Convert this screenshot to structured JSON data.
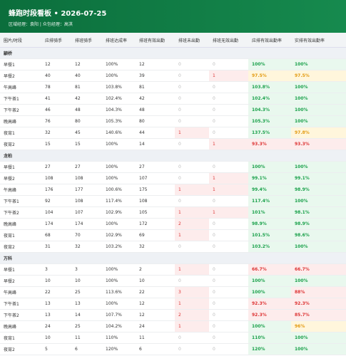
{
  "header": {
    "title": "蜂跑时段看板 • 2026-07-25",
    "subtitle": "区域经理：袁阳 | 众包经理：高淇"
  },
  "table": {
    "columns": [
      "圈片/时段",
      "应排骑手",
      "排班骑手",
      "排班达成率",
      "排班有效出勤",
      "排班未出勤",
      "排班无效出勤",
      "应排有效出勤率",
      "实排有效出勤率"
    ],
    "groups": [
      {
        "name": "颛桥",
        "rows": [
          [
            "早餐1",
            12,
            12,
            "100%",
            12,
            0,
            0,
            "100%",
            "100%"
          ],
          [
            "早餐2",
            40,
            40,
            "100%",
            39,
            0,
            1,
            "97.5%",
            "97.5%"
          ],
          [
            "午高峰",
            78,
            81,
            "103.8%",
            81,
            0,
            0,
            "103.8%",
            "100%"
          ],
          [
            "下午茶1",
            41,
            42,
            "102.4%",
            42,
            0,
            0,
            "102.4%",
            "100%"
          ],
          [
            "下午茶2",
            46,
            48,
            "104.3%",
            48,
            0,
            0,
            "104.3%",
            "100%"
          ],
          [
            "晚高峰",
            76,
            80,
            "105.3%",
            80,
            0,
            0,
            "105.3%",
            "100%"
          ],
          [
            "夜宵1",
            32,
            45,
            "140.6%",
            44,
            1,
            0,
            "137.5%",
            "97.8%"
          ],
          [
            "夜宵2",
            15,
            15,
            "100%",
            14,
            0,
            1,
            "93.3%",
            "93.3%"
          ]
        ]
      },
      {
        "name": "龙柏",
        "rows": [
          [
            "早餐1",
            27,
            27,
            "100%",
            27,
            0,
            0,
            "100%",
            "100%"
          ],
          [
            "早餐2",
            108,
            108,
            "100%",
            107,
            0,
            1,
            "99.1%",
            "99.1%"
          ],
          [
            "午高峰",
            176,
            177,
            "100.6%",
            175,
            1,
            1,
            "99.4%",
            "98.9%"
          ],
          [
            "下午茶1",
            92,
            108,
            "117.4%",
            108,
            0,
            0,
            "117.4%",
            "100%"
          ],
          [
            "下午茶2",
            104,
            107,
            "102.9%",
            105,
            1,
            1,
            "101%",
            "98.1%"
          ],
          [
            "晚高峰",
            174,
            174,
            "100%",
            172,
            2,
            0,
            "98.9%",
            "98.9%"
          ],
          [
            "夜宵1",
            68,
            70,
            "102.9%",
            69,
            1,
            0,
            "101.5%",
            "98.6%"
          ],
          [
            "夜宵2",
            31,
            32,
            "103.2%",
            32,
            0,
            0,
            "103.2%",
            "100%"
          ]
        ]
      },
      {
        "name": "万科",
        "rows": [
          [
            "早餐1",
            3,
            3,
            "100%",
            2,
            1,
            0,
            "66.7%",
            "66.7%"
          ],
          [
            "早餐2",
            10,
            10,
            "100%",
            10,
            0,
            0,
            "100%",
            "100%"
          ],
          [
            "午高峰",
            22,
            25,
            "113.6%",
            22,
            3,
            0,
            "100%",
            "88%"
          ],
          [
            "下午茶1",
            13,
            13,
            "100%",
            12,
            1,
            0,
            "92.3%",
            "92.3%"
          ],
          [
            "下午茶2",
            13,
            14,
            "107.7%",
            12,
            2,
            0,
            "92.3%",
            "85.7%"
          ],
          [
            "晚高峰",
            24,
            25,
            "104.2%",
            24,
            1,
            0,
            "100%",
            "96%"
          ],
          [
            "夜宵1",
            10,
            11,
            "110%",
            11,
            0,
            0,
            "110%",
            "100%"
          ],
          [
            "夜宵2",
            5,
            6,
            "120%",
            6,
            0,
            0,
            "120%",
            "100%"
          ]
        ]
      }
    ]
  }
}
